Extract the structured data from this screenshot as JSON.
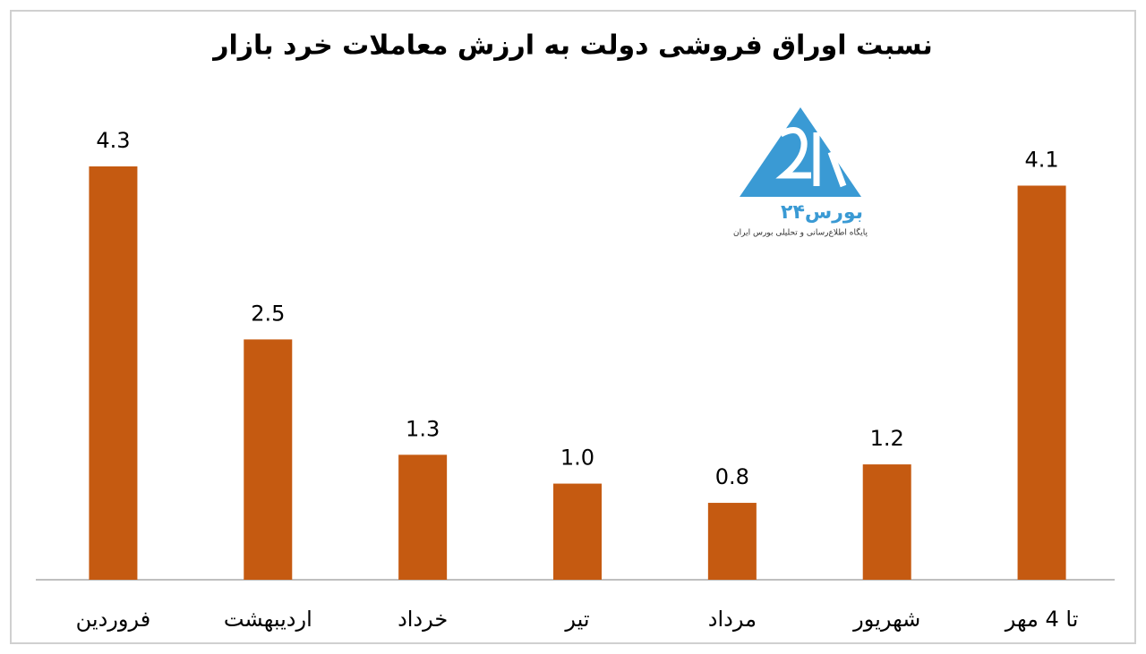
{
  "chart_data": {
    "type": "bar",
    "title": "نسبت اوراق فروشی دولت به ارزش معاملات خرد بازار",
    "categories": [
      "فروردین",
      "اردیبهشت",
      "خرداد",
      "تیر",
      "مرداد",
      "شهریور",
      "تا 4 مهر"
    ],
    "values": [
      4.3,
      2.5,
      1.3,
      1.0,
      0.8,
      1.2,
      4.1
    ],
    "value_labels": [
      "4.3",
      "2.5",
      "1.3",
      "1.0",
      "0.8",
      "1.2",
      "4.1"
    ],
    "color": "#c55a11",
    "watermark": {
      "name": "بورس۲۴",
      "tagline": "پایگاه اطلاع‌رسانی و تحلیلی بورس ایران"
    }
  }
}
